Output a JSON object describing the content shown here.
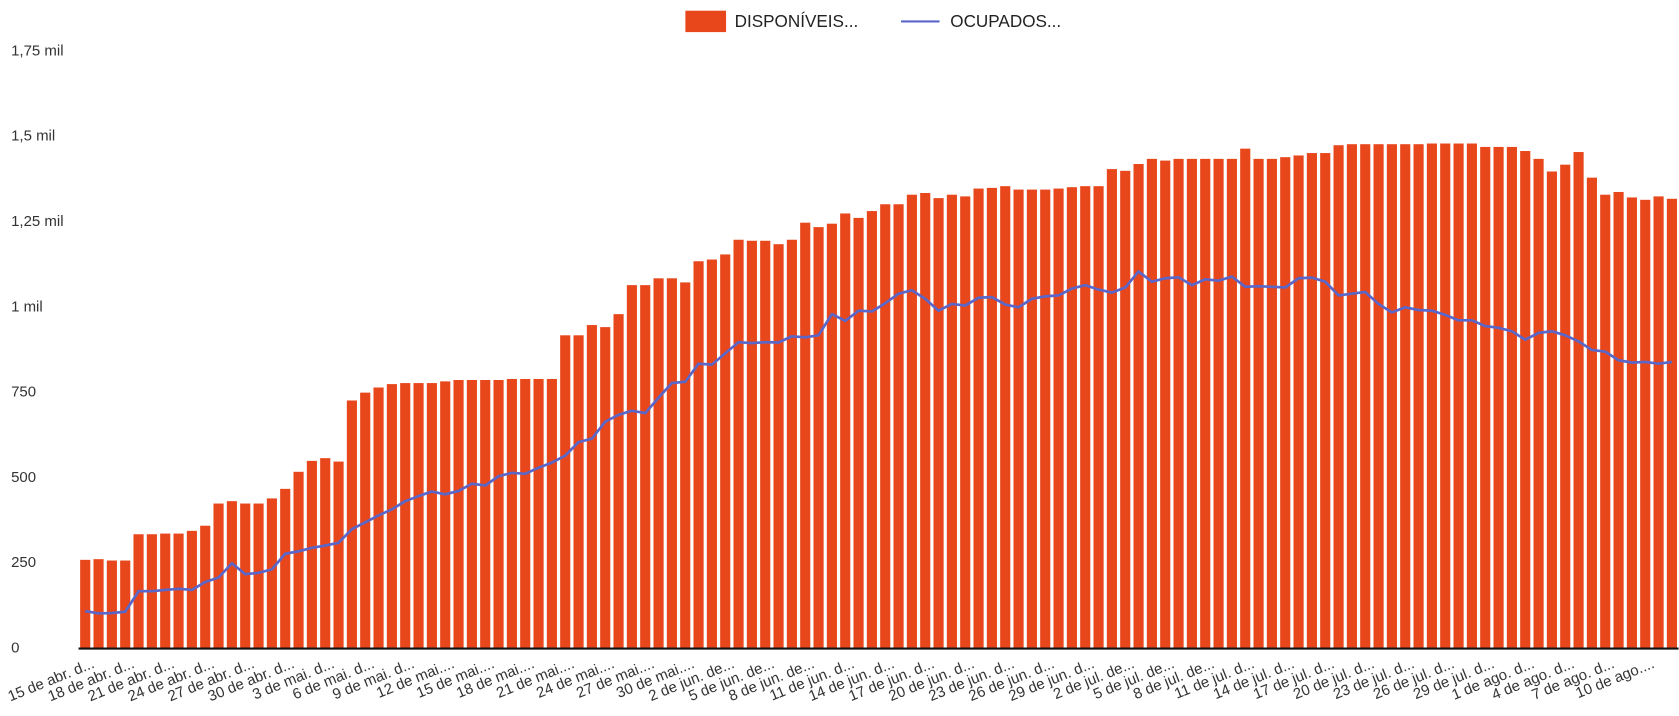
{
  "chart_data": {
    "type": "bar",
    "categories": [
      "15 de abr. d...",
      null,
      null,
      "18 de abr. d...",
      null,
      null,
      "21 de abr. d...",
      null,
      null,
      "24 de abr. d...",
      null,
      null,
      "27 de abr. d...",
      null,
      null,
      "30 de abr. d...",
      null,
      null,
      "3 de mai. d...",
      null,
      null,
      "6 de mai. d...",
      null,
      null,
      "9 de mai. d...",
      null,
      null,
      "12 de mai....",
      null,
      null,
      "15 de mai....",
      null,
      null,
      "18 de mai....",
      null,
      null,
      "21 de mai....",
      null,
      null,
      "24 de mai....",
      null,
      null,
      "27 de mai....",
      null,
      null,
      "30 de mai....",
      null,
      null,
      "2 de jun. de...",
      null,
      null,
      "5 de jun. de...",
      null,
      null,
      "8 de jun. de...",
      null,
      null,
      "11 de jun. d...",
      null,
      null,
      "14 de jun. d...",
      null,
      null,
      "17 de jun. d...",
      null,
      null,
      "20 de jun. d...",
      null,
      null,
      "23 de jun. d...",
      null,
      null,
      "26 de jun. d...",
      null,
      null,
      "29 de jun. d...",
      null,
      null,
      "2 de jul. de...",
      null,
      null,
      "5 de jul. de...",
      null,
      null,
      "8 de jul. de...",
      null,
      null,
      "11 de jul. d...",
      null,
      null,
      "14 de jul. d...",
      null,
      null,
      "17 de jul. d...",
      null,
      null,
      "20 de jul. d...",
      null,
      null,
      "23 de jul. d...",
      null,
      null,
      "26 de jul. d...",
      null,
      null,
      "29 de jul. d...",
      null,
      null,
      "1 de ago. d...",
      null,
      null,
      "4 de ago. d...",
      null,
      null,
      "7 de ago. d...",
      null,
      null,
      "10 de ago....",
      null,
      null
    ],
    "series": [
      {
        "name": "DISPONÍVEIS...",
        "type": "bar",
        "color": "#e8461b",
        "values": [
          260,
          262,
          258,
          258,
          335,
          335,
          337,
          337,
          345,
          360,
          425,
          432,
          425,
          425,
          440,
          468,
          518,
          550,
          558,
          548,
          727,
          750,
          765,
          775,
          778,
          778,
          778,
          783,
          787,
          787,
          787,
          787,
          790,
          790,
          790,
          790,
          918,
          918,
          948,
          942,
          980,
          1065,
          1065,
          1085,
          1085,
          1073,
          1135,
          1140,
          1155,
          1198,
          1195,
          1195,
          1185,
          1198,
          1248,
          1235,
          1245,
          1275,
          1262,
          1282,
          1302,
          1302,
          1330,
          1335,
          1320,
          1330,
          1325,
          1348,
          1350,
          1355,
          1345,
          1345,
          1345,
          1348,
          1352,
          1355,
          1355,
          1405,
          1400,
          1420,
          1435,
          1430,
          1435,
          1435,
          1435,
          1435,
          1435,
          1465,
          1435,
          1435,
          1440,
          1445,
          1452,
          1452,
          1475,
          1478,
          1478,
          1478,
          1478,
          1478,
          1478,
          1480,
          1480,
          1480,
          1480,
          1470,
          1470,
          1470,
          1458,
          1435,
          1398,
          1418,
          1455,
          1380,
          1330,
          1338,
          1322,
          1315,
          1325,
          1318
        ]
      },
      {
        "name": "OCUPADOS...",
        "type": "line",
        "color": "#5a67c9",
        "values": [
          110,
          103,
          104,
          108,
          168,
          168,
          172,
          175,
          172,
          195,
          208,
          250,
          218,
          222,
          232,
          278,
          285,
          295,
          302,
          310,
          350,
          370,
          390,
          408,
          432,
          447,
          460,
          452,
          462,
          483,
          478,
          505,
          515,
          512,
          530,
          545,
          565,
          605,
          615,
          665,
          685,
          697,
          690,
          735,
          778,
          782,
          835,
          832,
          865,
          898,
          895,
          898,
          897,
          915,
          912,
          918,
          980,
          960,
          990,
          988,
          1012,
          1040,
          1050,
          1025,
          990,
          1010,
          1005,
          1028,
          1030,
          1008,
          1000,
          1025,
          1032,
          1035,
          1055,
          1065,
          1052,
          1043,
          1058,
          1105,
          1075,
          1085,
          1088,
          1065,
          1082,
          1078,
          1090,
          1060,
          1062,
          1060,
          1058,
          1085,
          1087,
          1075,
          1035,
          1040,
          1045,
          1010,
          985,
          1000,
          992,
          990,
          978,
          962,
          962,
          945,
          940,
          930,
          905,
          925,
          930,
          918,
          900,
          875,
          870,
          845,
          838,
          840,
          835,
          840
        ]
      }
    ],
    "ylim": [
      0,
      1750
    ],
    "yticks": [
      0,
      250,
      500,
      750,
      {
        "value": 1000,
        "label": "1 mil"
      },
      {
        "value": 1250,
        "label": "1,25 mil"
      },
      {
        "value": 1500,
        "label": "1,5 mil"
      },
      {
        "value": 1750,
        "label": "1,75 mil"
      }
    ],
    "legend": "top"
  }
}
